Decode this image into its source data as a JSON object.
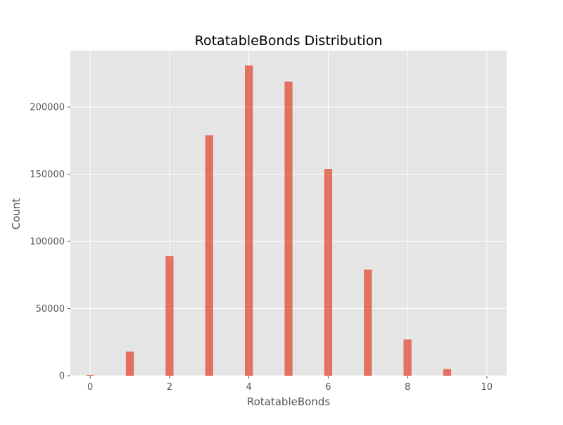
{
  "chart_data": {
    "type": "bar",
    "title": "RotatableBonds Distribution",
    "xlabel": "RotatableBonds",
    "ylabel": "Count",
    "xlim": [
      -0.5,
      10.5
    ],
    "ylim": [
      0,
      242000
    ],
    "xticks": [
      0,
      2,
      4,
      6,
      8,
      10
    ],
    "yticks": [
      0,
      50000,
      100000,
      150000,
      200000
    ],
    "bars": [
      {
        "x": 0,
        "value": 500
      },
      {
        "x": 1,
        "value": 18000
      },
      {
        "x": 2,
        "value": 89000
      },
      {
        "x": 3,
        "value": 179000
      },
      {
        "x": 4,
        "value": 231000
      },
      {
        "x": 5,
        "value": 219000
      },
      {
        "x": 6,
        "value": 154000
      },
      {
        "x": 7,
        "value": 79000
      },
      {
        "x": 8,
        "value": 27000
      },
      {
        "x": 9,
        "value": 5000
      },
      {
        "x": 10,
        "value": 0
      }
    ],
    "bar_color": "#E24A33",
    "bar_opacity": 0.75,
    "background_color": "#E5E5E5",
    "grid": true,
    "grid_color": "#FFFFFF"
  }
}
